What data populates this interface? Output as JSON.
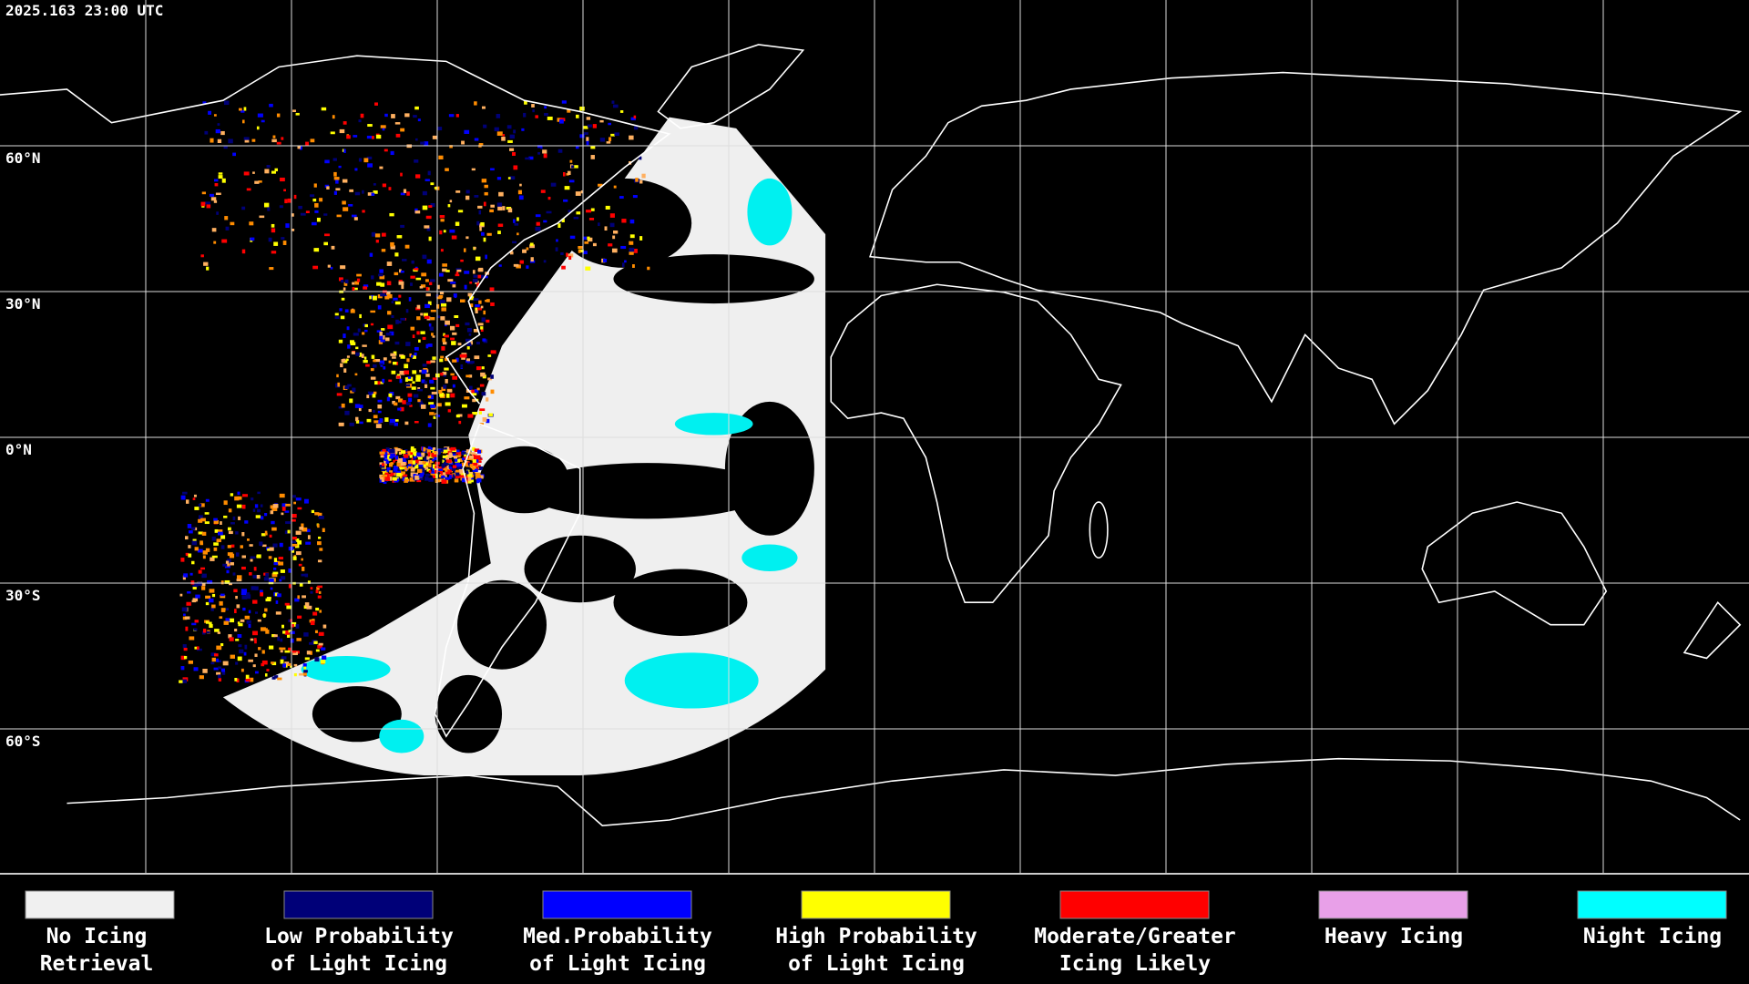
{
  "header": {
    "timestamp": "2025.163 23:00 UTC"
  },
  "map": {
    "lat_labels": [
      "60°N",
      "30°N",
      "0°N",
      "30°S",
      "60°S"
    ]
  },
  "legend": {
    "items": [
      {
        "lines": [
          "No Icing",
          "Retrieval"
        ],
        "color": "#f0f0f0"
      },
      {
        "lines": [
          "Low Probability",
          "of Light Icing"
        ],
        "color": "#000078"
      },
      {
        "lines": [
          "Med.Probability",
          "of Light Icing"
        ],
        "color": "#0000ff"
      },
      {
        "lines": [
          "High Probability",
          "of Light Icing"
        ],
        "color": "#ffff00"
      },
      {
        "lines": [
          "Moderate/Greater",
          "Icing Likely"
        ],
        "color": "#ff0000"
      },
      {
        "lines": [
          "Heavy Icing"
        ],
        "color": "#e8a0e8"
      },
      {
        "lines": [
          "Night Icing"
        ],
        "color": "#00ffff"
      }
    ]
  }
}
